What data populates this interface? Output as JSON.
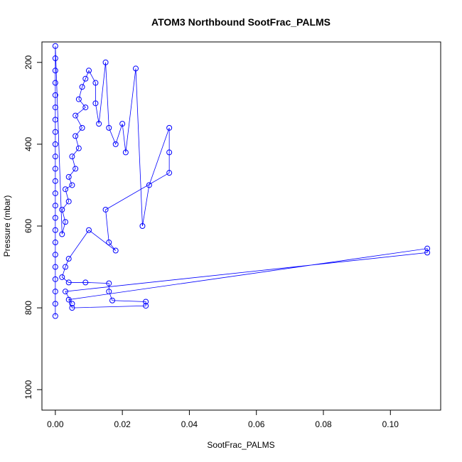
{
  "chart_data": {
    "type": "scatter",
    "title": "ATOM3 Northbound SootFrac_PALMS",
    "xlabel": "SootFrac_PALMS",
    "ylabel": "Pressure (mbar)",
    "xlim": [
      -0.004,
      0.115
    ],
    "ylim": [
      1050,
      150
    ],
    "xticks": [
      0.0,
      0.02,
      0.04,
      0.06,
      0.08,
      0.1
    ],
    "xtick_labels": [
      "0.00",
      "0.02",
      "0.04",
      "0.06",
      "0.08",
      "0.10"
    ],
    "yticks": [
      200,
      400,
      600,
      800,
      1000
    ],
    "ytick_labels": [
      "200",
      "400",
      "600",
      "800",
      "1000"
    ],
    "grid": false,
    "color": "#0000ff",
    "series": [
      {
        "points": [
          [
            0.0,
            820
          ],
          [
            0.0,
            790
          ],
          [
            0.0,
            760
          ],
          [
            0.0,
            730
          ],
          [
            0.0,
            700
          ],
          [
            0.0,
            670
          ],
          [
            0.0,
            640
          ],
          [
            0.0,
            610
          ],
          [
            0.0,
            580
          ],
          [
            0.0,
            550
          ],
          [
            0.0,
            520
          ],
          [
            0.0,
            490
          ],
          [
            0.0,
            460
          ],
          [
            0.0,
            430
          ],
          [
            0.0,
            400
          ],
          [
            0.0,
            370
          ],
          [
            0.0,
            340
          ],
          [
            0.0,
            310
          ],
          [
            0.0,
            280
          ],
          [
            0.0,
            250
          ],
          [
            0.0,
            220
          ],
          [
            0.0,
            190
          ],
          [
            0.0,
            160
          ],
          [
            0.002,
            620
          ],
          [
            0.003,
            590
          ],
          [
            0.002,
            560
          ],
          [
            0.004,
            540
          ],
          [
            0.003,
            510
          ],
          [
            0.005,
            500
          ],
          [
            0.004,
            480
          ],
          [
            0.006,
            460
          ],
          [
            0.005,
            430
          ],
          [
            0.007,
            410
          ],
          [
            0.006,
            380
          ],
          [
            0.008,
            360
          ],
          [
            0.006,
            330
          ],
          [
            0.009,
            310
          ],
          [
            0.007,
            290
          ],
          [
            0.008,
            260
          ],
          [
            0.009,
            240
          ],
          [
            0.01,
            220
          ],
          [
            0.012,
            250
          ],
          [
            0.012,
            300
          ],
          [
            0.013,
            350
          ],
          [
            0.015,
            200
          ],
          [
            0.016,
            360
          ],
          [
            0.018,
            400
          ],
          [
            0.02,
            350
          ],
          [
            0.021,
            420
          ],
          [
            0.024,
            215
          ],
          [
            0.026,
            600
          ],
          [
            0.028,
            500
          ],
          [
            0.034,
            360
          ],
          [
            0.034,
            420
          ],
          [
            0.034,
            470
          ],
          [
            0.015,
            560
          ],
          [
            0.016,
            640
          ],
          [
            0.018,
            660
          ],
          [
            0.01,
            610
          ],
          [
            0.004,
            680
          ],
          [
            0.003,
            700
          ],
          [
            0.002,
            725
          ],
          [
            0.004,
            738
          ],
          [
            0.009,
            738
          ],
          [
            0.016,
            740
          ],
          [
            0.016,
            760
          ],
          [
            0.017,
            782
          ],
          [
            0.027,
            785
          ],
          [
            0.027,
            795
          ],
          [
            0.005,
            800
          ],
          [
            0.004,
            780
          ],
          [
            0.111,
            655
          ],
          [
            0.111,
            665
          ],
          [
            0.003,
            760
          ],
          [
            0.005,
            790
          ]
        ]
      }
    ]
  }
}
